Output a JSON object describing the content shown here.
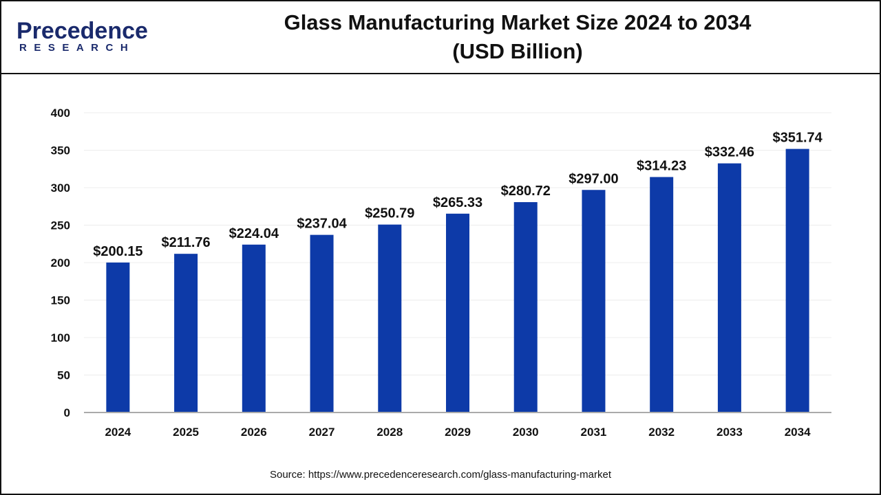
{
  "logo": {
    "line1": "Precedence",
    "line2": "RESEARCH"
  },
  "title_line1": "Glass Manufacturing Market Size 2024 to 2034",
  "title_line2": "(USD Billion)",
  "source": "Source: https://www.precedenceresearch.com/glass-manufacturing-market",
  "chart_data": {
    "type": "bar",
    "title": "Glass Manufacturing Market Size 2024 to 2034 (USD Billion)",
    "categories": [
      "2024",
      "2025",
      "2026",
      "2027",
      "2028",
      "2029",
      "2030",
      "2031",
      "2032",
      "2033",
      "2034"
    ],
    "values": [
      200.15,
      211.76,
      224.04,
      237.04,
      250.79,
      265.33,
      280.72,
      297.0,
      314.23,
      332.46,
      351.74
    ],
    "data_labels": [
      "$200.15",
      "$211.76",
      "$224.04",
      "$237.04",
      "$250.79",
      "$265.33",
      "$280.72",
      "$297.00",
      "$314.23",
      "$332.46",
      "$351.74"
    ],
    "yticks": [
      0,
      50,
      100,
      150,
      200,
      250,
      300,
      350,
      400
    ],
    "ylim": [
      0,
      400
    ],
    "grid": true,
    "bar_color": "#0d3aa8"
  }
}
